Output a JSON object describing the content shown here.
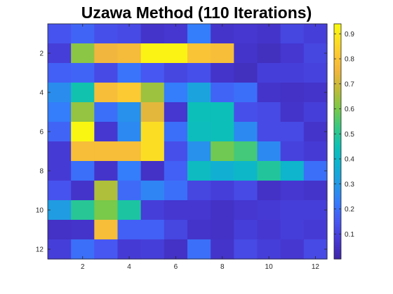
{
  "chart_data": {
    "type": "heatmap",
    "title": "Uzawa Method (110 Iterations)",
    "xlabel": "",
    "ylabel": "",
    "rows": 12,
    "cols": 12,
    "xticks": [
      2,
      4,
      6,
      8,
      10,
      12
    ],
    "yticks": [
      2,
      4,
      6,
      8,
      10,
      12
    ],
    "colorbar": {
      "min": 0.0,
      "max": 0.94,
      "ticks": [
        0.1,
        0.2,
        0.3,
        0.4,
        0.5,
        0.6,
        0.7,
        0.8,
        0.9
      ],
      "tick_labels": [
        "0.1",
        "0.2",
        "0.3",
        "0.4",
        "0.5",
        "0.6",
        "0.7",
        "0.8",
        "0.9"
      ],
      "colormap": "parula"
    },
    "values": [
      [
        0.14,
        0.18,
        0.13,
        0.12,
        0.06,
        0.07,
        0.23,
        0.06,
        0.07,
        0.06,
        0.11,
        0.09
      ],
      [
        0.09,
        0.62,
        0.75,
        0.77,
        0.92,
        0.92,
        0.8,
        0.78,
        0.06,
        0.04,
        0.07,
        0.11
      ],
      [
        0.17,
        0.18,
        0.12,
        0.21,
        0.15,
        0.11,
        0.13,
        0.06,
        0.04,
        0.09,
        0.09,
        0.1
      ],
      [
        0.27,
        0.46,
        0.78,
        0.82,
        0.64,
        0.23,
        0.33,
        0.18,
        0.2,
        0.06,
        0.05,
        0.06
      ],
      [
        0.23,
        0.63,
        0.2,
        0.28,
        0.73,
        0.07,
        0.44,
        0.44,
        0.13,
        0.12,
        0.06,
        0.09
      ],
      [
        0.18,
        0.93,
        0.07,
        0.26,
        0.87,
        0.2,
        0.43,
        0.44,
        0.26,
        0.12,
        0.12,
        0.06
      ],
      [
        0.08,
        0.78,
        0.78,
        0.78,
        0.87,
        0.13,
        0.28,
        0.59,
        0.54,
        0.26,
        0.1,
        0.08
      ],
      [
        0.08,
        0.2,
        0.06,
        0.23,
        0.05,
        0.17,
        0.42,
        0.37,
        0.4,
        0.49,
        0.39,
        0.2
      ],
      [
        0.14,
        0.06,
        0.66,
        0.19,
        0.25,
        0.2,
        0.11,
        0.09,
        0.12,
        0.05,
        0.07,
        0.06
      ],
      [
        0.31,
        0.5,
        0.6,
        0.48,
        0.09,
        0.07,
        0.07,
        0.05,
        0.07,
        0.08,
        0.09,
        0.09
      ],
      [
        0.05,
        0.06,
        0.78,
        0.17,
        0.17,
        0.11,
        0.06,
        0.05,
        0.09,
        0.07,
        0.09,
        0.08
      ],
      [
        0.09,
        0.2,
        0.15,
        0.08,
        0.09,
        0.05,
        0.2,
        0.06,
        0.12,
        0.09,
        0.07,
        0.12
      ]
    ]
  }
}
